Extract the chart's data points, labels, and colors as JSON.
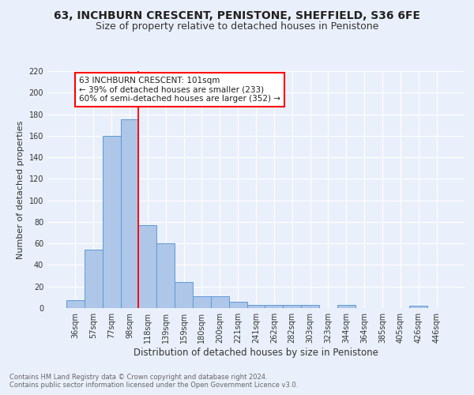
{
  "title": "63, INCHBURN CRESCENT, PENISTONE, SHEFFIELD, S36 6FE",
  "subtitle": "Size of property relative to detached houses in Penistone",
  "xlabel": "Distribution of detached houses by size in Penistone",
  "ylabel": "Number of detached properties",
  "footnote1": "Contains HM Land Registry data © Crown copyright and database right 2024.",
  "footnote2": "Contains public sector information licensed under the Open Government Licence v3.0.",
  "categories": [
    "36sqm",
    "57sqm",
    "77sqm",
    "98sqm",
    "118sqm",
    "139sqm",
    "159sqm",
    "180sqm",
    "200sqm",
    "221sqm",
    "241sqm",
    "262sqm",
    "282sqm",
    "303sqm",
    "323sqm",
    "344sqm",
    "364sqm",
    "385sqm",
    "405sqm",
    "426sqm",
    "446sqm"
  ],
  "values": [
    7,
    54,
    160,
    175,
    77,
    60,
    24,
    11,
    11,
    6,
    3,
    3,
    3,
    3,
    0,
    3,
    0,
    0,
    0,
    2,
    0
  ],
  "bar_color": "#aec6e8",
  "bar_edge_color": "#5b9bd5",
  "vline_color": "red",
  "vline_x_index": 3.5,
  "annotation_text": "63 INCHBURN CRESCENT: 101sqm\n← 39% of detached houses are smaller (233)\n60% of semi-detached houses are larger (352) →",
  "annotation_box_color": "white",
  "annotation_box_edge_color": "red",
  "ylim": [
    0,
    220
  ],
  "yticks": [
    0,
    20,
    40,
    60,
    80,
    100,
    120,
    140,
    160,
    180,
    200,
    220
  ],
  "bg_color": "#eaf0fb",
  "title_fontsize": 10,
  "subtitle_fontsize": 9,
  "annotation_fontsize": 7.5,
  "ylabel_fontsize": 8,
  "xlabel_fontsize": 8.5,
  "tick_fontsize": 7,
  "footnote_fontsize": 6
}
